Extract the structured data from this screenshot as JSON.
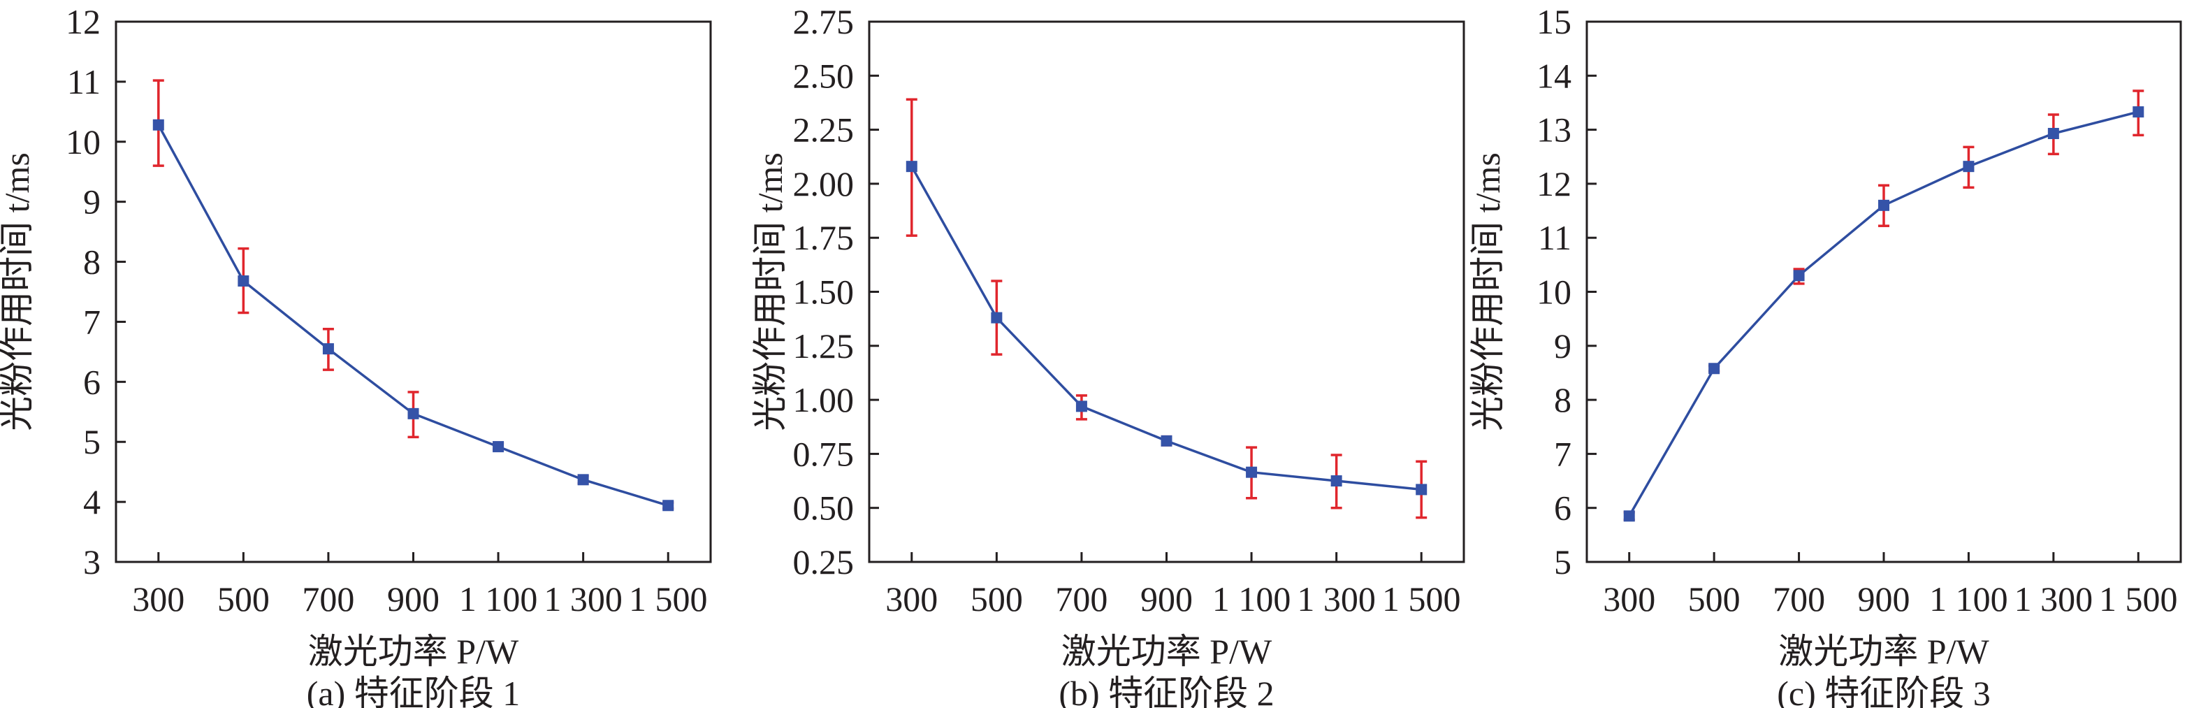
{
  "chart_data": [
    {
      "type": "line",
      "caption": "(a) 特征阶段 1",
      "xlabel": "激光功率 P/W",
      "ylabel": "光粉作用时间 t/ms",
      "x": [
        300,
        500,
        700,
        900,
        1100,
        1300,
        1500
      ],
      "x_tick_labels": [
        "300",
        "500",
        "700",
        "900",
        "1 100",
        "1 300",
        "1 500"
      ],
      "xlim": [
        200,
        1600
      ],
      "ylim": [
        3,
        12
      ],
      "y_ticks": [
        3,
        4,
        5,
        6,
        7,
        8,
        9,
        10,
        11,
        12
      ],
      "y_tick_labels": [
        "3",
        "4",
        "5",
        "6",
        "7",
        "8",
        "9",
        "10",
        "11",
        "12"
      ],
      "series": [
        {
          "name": "t",
          "values": [
            10.28,
            7.68,
            6.55,
            5.47,
            4.92,
            4.37,
            3.94
          ],
          "err_low": [
            9.6,
            7.15,
            6.2,
            5.08,
            4.87,
            4.31,
            3.89
          ],
          "err_high": [
            11.02,
            8.22,
            6.88,
            5.83,
            4.98,
            4.43,
            3.99
          ]
        }
      ],
      "grid": false
    },
    {
      "type": "line",
      "caption": "(b) 特征阶段 2",
      "xlabel": "激光功率 P/W",
      "ylabel": "光粉作用时间 t/ms",
      "x": [
        300,
        500,
        700,
        900,
        1100,
        1300,
        1500
      ],
      "x_tick_labels": [
        "300",
        "500",
        "700",
        "900",
        "1 100",
        "1 300",
        "1 500"
      ],
      "xlim": [
        200,
        1600
      ],
      "ylim": [
        0.25,
        2.75
      ],
      "y_ticks": [
        0.25,
        0.5,
        0.75,
        1.0,
        1.25,
        1.5,
        1.75,
        2.0,
        2.25,
        2.5,
        2.75
      ],
      "y_tick_labels": [
        "0.25",
        "0.50",
        "0.75",
        "1.00",
        "1.25",
        "1.50",
        "1.75",
        "2.00",
        "2.25",
        "2.50",
        "2.75"
      ],
      "series": [
        {
          "name": "t",
          "values": [
            2.08,
            1.38,
            0.97,
            0.81,
            0.665,
            0.625,
            0.585
          ],
          "err_low": [
            1.76,
            1.21,
            0.91,
            0.79,
            0.545,
            0.5,
            0.455
          ],
          "err_high": [
            2.39,
            1.55,
            1.02,
            0.83,
            0.78,
            0.745,
            0.715
          ]
        }
      ],
      "grid": false
    },
    {
      "type": "line",
      "caption": "(c) 特征阶段 3",
      "xlabel": "激光功率 P/W",
      "ylabel": "光粉作用时间 t/ms",
      "x": [
        300,
        500,
        700,
        900,
        1100,
        1300,
        1500
      ],
      "x_tick_labels": [
        "300",
        "500",
        "700",
        "900",
        "1 100",
        "1 300",
        "1 500"
      ],
      "xlim": [
        200,
        1600
      ],
      "ylim": [
        5,
        15
      ],
      "y_ticks": [
        5,
        6,
        7,
        8,
        9,
        10,
        11,
        12,
        13,
        14,
        15
      ],
      "y_tick_labels": [
        "5",
        "6",
        "7",
        "8",
        "9",
        "10",
        "11",
        "12",
        "13",
        "14",
        "15"
      ],
      "series": [
        {
          "name": "t",
          "values": [
            5.85,
            8.58,
            10.3,
            11.6,
            12.32,
            12.93,
            13.33
          ],
          "err_low": [
            5.78,
            8.53,
            10.15,
            11.22,
            11.93,
            12.55,
            12.9
          ],
          "err_high": [
            5.92,
            8.63,
            10.42,
            11.97,
            12.68,
            13.28,
            13.72
          ]
        }
      ],
      "grid": false
    }
  ],
  "colors": {
    "line": "#2e4da0",
    "marker": "#3553a8",
    "error": "#e0262d",
    "axis": "#231f20"
  }
}
